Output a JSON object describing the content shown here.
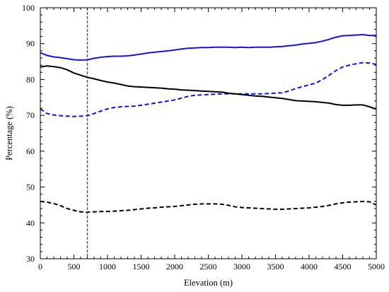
{
  "chart_data": {
    "type": "line",
    "title": "",
    "xlabel": "Elevation (m)",
    "ylabel": "Percentage (%)",
    "xlim": [
      0,
      5000
    ],
    "ylim": [
      30,
      100
    ],
    "xticks": [
      0,
      500,
      1000,
      1500,
      2000,
      2500,
      3000,
      3500,
      4000,
      4500,
      5000
    ],
    "yticks": [
      30,
      40,
      50,
      60,
      70,
      80,
      90,
      100
    ],
    "grid": false,
    "legend": "none",
    "reference_line": {
      "x": 700,
      "color": "#8b1a8b",
      "style": "dashed"
    },
    "series": [
      {
        "color": "#1515d4",
        "style": "solid",
        "points": [
          [
            0,
            87.5
          ],
          [
            100,
            86.7
          ],
          [
            200,
            86.3
          ],
          [
            300,
            86.1
          ],
          [
            400,
            85.8
          ],
          [
            500,
            85.5
          ],
          [
            600,
            85.4
          ],
          [
            700,
            85.5
          ],
          [
            800,
            85.9
          ],
          [
            900,
            86.2
          ],
          [
            1000,
            86.4
          ],
          [
            1100,
            86.5
          ],
          [
            1200,
            86.5
          ],
          [
            1300,
            86.6
          ],
          [
            1400,
            86.8
          ],
          [
            1500,
            87.1
          ],
          [
            1600,
            87.4
          ],
          [
            1700,
            87.6
          ],
          [
            1800,
            87.8
          ],
          [
            1900,
            88.0
          ],
          [
            2000,
            88.2
          ],
          [
            2100,
            88.5
          ],
          [
            2200,
            88.7
          ],
          [
            2300,
            88.8
          ],
          [
            2400,
            88.9
          ],
          [
            2500,
            88.9
          ],
          [
            2600,
            89.0
          ],
          [
            2700,
            89.0
          ],
          [
            2800,
            89.0
          ],
          [
            2900,
            88.9
          ],
          [
            3000,
            89.0
          ],
          [
            3100,
            88.9
          ],
          [
            3200,
            89.0
          ],
          [
            3300,
            89.0
          ],
          [
            3400,
            89.0
          ],
          [
            3500,
            89.1
          ],
          [
            3600,
            89.2
          ],
          [
            3700,
            89.4
          ],
          [
            3800,
            89.6
          ],
          [
            3900,
            89.9
          ],
          [
            4000,
            90.1
          ],
          [
            4100,
            90.3
          ],
          [
            4200,
            90.7
          ],
          [
            4300,
            91.2
          ],
          [
            4400,
            91.8
          ],
          [
            4500,
            92.2
          ],
          [
            4600,
            92.3
          ],
          [
            4700,
            92.4
          ],
          [
            4800,
            92.5
          ],
          [
            4900,
            92.3
          ],
          [
            5000,
            92.3
          ]
        ]
      },
      {
        "color": "#1515d4",
        "style": "dashed",
        "points": [
          [
            0,
            71.8
          ],
          [
            100,
            70.5
          ],
          [
            200,
            70.1
          ],
          [
            300,
            69.9
          ],
          [
            400,
            69.8
          ],
          [
            500,
            69.7
          ],
          [
            600,
            69.8
          ],
          [
            700,
            69.9
          ],
          [
            800,
            70.5
          ],
          [
            900,
            71.2
          ],
          [
            1000,
            71.8
          ],
          [
            1100,
            72.2
          ],
          [
            1200,
            72.4
          ],
          [
            1300,
            72.5
          ],
          [
            1400,
            72.6
          ],
          [
            1500,
            72.8
          ],
          [
            1600,
            73.1
          ],
          [
            1700,
            73.4
          ],
          [
            1800,
            73.7
          ],
          [
            1900,
            74.0
          ],
          [
            2000,
            74.3
          ],
          [
            2100,
            74.8
          ],
          [
            2200,
            75.3
          ],
          [
            2300,
            75.6
          ],
          [
            2400,
            75.7
          ],
          [
            2500,
            75.8
          ],
          [
            2600,
            75.9
          ],
          [
            2700,
            76.0
          ],
          [
            2800,
            76.0
          ],
          [
            2900,
            76.0
          ],
          [
            3000,
            76.0
          ],
          [
            3100,
            76.0
          ],
          [
            3200,
            76.0
          ],
          [
            3300,
            76.0
          ],
          [
            3400,
            76.1
          ],
          [
            3500,
            76.2
          ],
          [
            3600,
            76.3
          ],
          [
            3700,
            76.8
          ],
          [
            3800,
            77.5
          ],
          [
            3900,
            78.0
          ],
          [
            4000,
            78.5
          ],
          [
            4100,
            79.0
          ],
          [
            4200,
            80.0
          ],
          [
            4300,
            81.2
          ],
          [
            4400,
            82.5
          ],
          [
            4500,
            83.5
          ],
          [
            4600,
            84.0
          ],
          [
            4700,
            84.4
          ],
          [
            4800,
            84.7
          ],
          [
            4900,
            84.6
          ],
          [
            5000,
            84.2
          ]
        ]
      },
      {
        "color": "#000000",
        "style": "solid",
        "points": [
          [
            0,
            83.5
          ],
          [
            100,
            83.8
          ],
          [
            200,
            83.6
          ],
          [
            300,
            83.3
          ],
          [
            400,
            82.7
          ],
          [
            500,
            81.8
          ],
          [
            600,
            81.2
          ],
          [
            700,
            80.6
          ],
          [
            800,
            80.2
          ],
          [
            900,
            79.7
          ],
          [
            1000,
            79.3
          ],
          [
            1100,
            79.0
          ],
          [
            1200,
            78.6
          ],
          [
            1300,
            78.2
          ],
          [
            1400,
            78.0
          ],
          [
            1500,
            77.9
          ],
          [
            1600,
            77.8
          ],
          [
            1700,
            77.7
          ],
          [
            1800,
            77.6
          ],
          [
            1900,
            77.4
          ],
          [
            2000,
            77.3
          ],
          [
            2100,
            77.1
          ],
          [
            2200,
            77.0
          ],
          [
            2300,
            76.9
          ],
          [
            2400,
            76.8
          ],
          [
            2500,
            76.7
          ],
          [
            2600,
            76.6
          ],
          [
            2700,
            76.5
          ],
          [
            2800,
            76.2
          ],
          [
            2900,
            76.0
          ],
          [
            3000,
            75.8
          ],
          [
            3100,
            75.6
          ],
          [
            3200,
            75.4
          ],
          [
            3300,
            75.3
          ],
          [
            3400,
            75.1
          ],
          [
            3500,
            74.9
          ],
          [
            3600,
            74.7
          ],
          [
            3700,
            74.4
          ],
          [
            3800,
            74.1
          ],
          [
            3900,
            74.0
          ],
          [
            4000,
            73.9
          ],
          [
            4100,
            73.8
          ],
          [
            4200,
            73.6
          ],
          [
            4300,
            73.4
          ],
          [
            4400,
            73.0
          ],
          [
            4500,
            72.8
          ],
          [
            4600,
            72.8
          ],
          [
            4700,
            72.9
          ],
          [
            4800,
            72.9
          ],
          [
            4900,
            72.4
          ],
          [
            5000,
            71.7
          ]
        ]
      },
      {
        "color": "#000000",
        "style": "dashed",
        "points": [
          [
            0,
            46.0
          ],
          [
            100,
            45.8
          ],
          [
            200,
            45.4
          ],
          [
            300,
            44.8
          ],
          [
            400,
            44.0
          ],
          [
            500,
            43.5
          ],
          [
            600,
            43.1
          ],
          [
            700,
            43.0
          ],
          [
            800,
            43.1
          ],
          [
            900,
            43.2
          ],
          [
            1000,
            43.2
          ],
          [
            1100,
            43.3
          ],
          [
            1200,
            43.4
          ],
          [
            1300,
            43.5
          ],
          [
            1400,
            43.7
          ],
          [
            1500,
            43.9
          ],
          [
            1600,
            44.1
          ],
          [
            1700,
            44.2
          ],
          [
            1800,
            44.4
          ],
          [
            1900,
            44.5
          ],
          [
            2000,
            44.6
          ],
          [
            2100,
            44.8
          ],
          [
            2200,
            45.0
          ],
          [
            2300,
            45.2
          ],
          [
            2400,
            45.3
          ],
          [
            2500,
            45.3
          ],
          [
            2600,
            45.3
          ],
          [
            2700,
            45.2
          ],
          [
            2800,
            44.9
          ],
          [
            2900,
            44.5
          ],
          [
            3000,
            44.3
          ],
          [
            3100,
            44.2
          ],
          [
            3200,
            44.1
          ],
          [
            3300,
            44.0
          ],
          [
            3400,
            43.9
          ],
          [
            3500,
            43.8
          ],
          [
            3600,
            43.8
          ],
          [
            3700,
            43.9
          ],
          [
            3800,
            44.0
          ],
          [
            3900,
            44.1
          ],
          [
            4000,
            44.2
          ],
          [
            4100,
            44.4
          ],
          [
            4200,
            44.6
          ],
          [
            4300,
            44.9
          ],
          [
            4400,
            45.3
          ],
          [
            4500,
            45.6
          ],
          [
            4600,
            45.8
          ],
          [
            4700,
            45.9
          ],
          [
            4800,
            46.0
          ],
          [
            4900,
            45.9
          ],
          [
            5000,
            45.0
          ]
        ]
      }
    ]
  }
}
